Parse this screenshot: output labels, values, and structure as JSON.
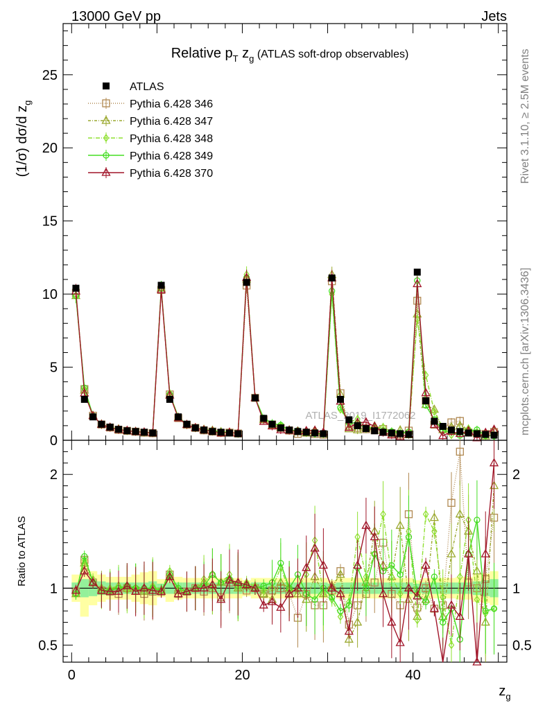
{
  "header": {
    "left_label": "13000 GeV pp",
    "right_label": "Jets",
    "side_label_top": "Rivet 3.1.10, ≥ 2.5M events",
    "side_label_bottom": "mcplots.cern.ch [arXiv:1306.3436]",
    "watermark": "ATLAS_2019_I1772062"
  },
  "chart_data": {
    "type": "line",
    "title_main": "Relative p",
    "title_sub_T": "T",
    "title_mid": " z",
    "title_sub_g": "g",
    "title_tail": " (ATLAS soft-drop observables)",
    "ylabel_top": "(1/σ) dσ/d z",
    "ylabel_top_sub": "g",
    "ylabel_bottom": "Ratio to ATLAS",
    "xlabel": "z",
    "xlabel_sub": "g",
    "xlim": [
      -1,
      51
    ],
    "ylim_top": [
      0,
      28.5
    ],
    "ylim_ratio": [
      0.35,
      2.3
    ],
    "x_ticks": [
      0,
      20,
      40
    ],
    "y_ticks_top": [
      0,
      5,
      10,
      15,
      20,
      25
    ],
    "y_ticks_ratio": [
      0.5,
      1,
      2
    ],
    "legend_position": "top-left",
    "x": [
      0.5,
      1.5,
      2.5,
      3.5,
      4.5,
      5.5,
      6.5,
      7.5,
      8.5,
      9.5,
      10.5,
      11.5,
      12.5,
      13.5,
      14.5,
      15.5,
      16.5,
      17.5,
      18.5,
      19.5,
      20.5,
      21.5,
      22.5,
      23.5,
      24.5,
      25.5,
      26.5,
      27.5,
      28.5,
      29.5,
      30.5,
      31.5,
      32.5,
      33.5,
      34.5,
      35.5,
      36.5,
      37.5,
      38.5,
      39.5,
      40.5,
      41.5,
      42.5,
      43.5,
      44.5,
      45.5,
      46.5,
      47.5,
      48.5,
      49.5
    ],
    "atlas": {
      "name": "ATLAS",
      "color": "#000000",
      "values": [
        10.4,
        2.8,
        1.6,
        1.1,
        0.9,
        0.75,
        0.65,
        0.6,
        0.55,
        0.5,
        10.6,
        2.8,
        1.6,
        1.1,
        0.85,
        0.7,
        0.6,
        0.55,
        0.5,
        0.45,
        10.8,
        2.9,
        1.5,
        1.1,
        0.85,
        0.7,
        0.6,
        0.55,
        0.5,
        0.45,
        11.1,
        2.8,
        1.4,
        1.0,
        0.8,
        0.65,
        0.55,
        0.5,
        0.45,
        0.4,
        11.5,
        2.7,
        1.3,
        0.95,
        0.7,
        0.6,
        0.5,
        0.45,
        0.4,
        0.35
      ],
      "ratio_band_inner": [
        0.05,
        0.08,
        0.07,
        0.06,
        0.05,
        0.05,
        0.05,
        0.05,
        0.05,
        0.06,
        0.04,
        0.05,
        0.05,
        0.05,
        0.05,
        0.05,
        0.05,
        0.05,
        0.05,
        0.05,
        0.04,
        0.05,
        0.05,
        0.05,
        0.05,
        0.05,
        0.05,
        0.05,
        0.05,
        0.05,
        0.04,
        0.05,
        0.05,
        0.05,
        0.05,
        0.05,
        0.05,
        0.05,
        0.05,
        0.05,
        0.04,
        0.05,
        0.05,
        0.05,
        0.05,
        0.05,
        0.05,
        0.06,
        0.07,
        0.08
      ],
      "ratio_band_outer": [
        0.12,
        0.25,
        0.15,
        0.12,
        0.1,
        0.1,
        0.1,
        0.12,
        0.14,
        0.15,
        0.08,
        0.12,
        0.1,
        0.09,
        0.09,
        0.09,
        0.09,
        0.09,
        0.09,
        0.09,
        0.07,
        0.09,
        0.09,
        0.09,
        0.09,
        0.09,
        0.09,
        0.09,
        0.09,
        0.09,
        0.07,
        0.09,
        0.09,
        0.09,
        0.09,
        0.09,
        0.09,
        0.09,
        0.09,
        0.09,
        0.07,
        0.09,
        0.09,
        0.09,
        0.09,
        0.1,
        0.1,
        0.12,
        0.13,
        0.15
      ]
    },
    "series": [
      {
        "name": "Pythia 6.428 346",
        "color": "#b08850",
        "marker": "square",
        "dash": "1,2",
        "ratio": [
          0.97,
          1.25,
          1.05,
          0.98,
          0.97,
          0.95,
          1.0,
          0.98,
          0.95,
          0.97,
          0.97,
          1.12,
          0.95,
          0.97,
          1.0,
          0.97,
          1.0,
          0.92,
          1.05,
          1.03,
          0.98,
          1.0,
          0.95,
          0.98,
          1.0,
          0.95,
          0.74,
          0.95,
          0.85,
          0.85,
          0.98,
          1.15,
          0.68,
          0.85,
          0.95,
          1.05,
          1.4,
          0.95,
          0.85,
          1.65,
          0.83,
          1.0,
          0.82,
          0.85,
          1.75,
          2.2,
          1.05,
          1.0,
          1.08,
          1.62
        ]
      },
      {
        "name": "Pythia 6.428 347",
        "color": "#9aa82e",
        "marker": "triangle",
        "dash": "4,2,1,2",
        "ratio": [
          0.95,
          1.22,
          1.05,
          1.0,
          0.98,
          1.02,
          1.0,
          1.0,
          0.97,
          1.0,
          0.98,
          1.1,
          0.98,
          0.97,
          1.0,
          1.05,
          1.12,
          1.05,
          1.08,
          1.0,
          1.02,
          1.0,
          0.95,
          0.9,
          1.05,
          1.0,
          0.95,
          0.9,
          1.1,
          0.95,
          1.02,
          1.12,
          0.55,
          0.7,
          1.05,
          1.5,
          1.2,
          1.1,
          1.55,
          0.9,
          0.75,
          0.9,
          1.62,
          0.75,
          1.3,
          1.65,
          1.5,
          1.15,
          0.7,
          1.9
        ]
      },
      {
        "name": "Pythia 6.428 348",
        "color": "#8fe030",
        "marker": "diamond",
        "dash": "6,2,1,2",
        "ratio": [
          0.95,
          1.25,
          1.08,
          0.97,
          1.0,
          1.02,
          0.98,
          1.0,
          0.97,
          1.02,
          0.98,
          1.15,
          0.98,
          0.97,
          1.0,
          1.08,
          1.0,
          1.05,
          1.12,
          1.0,
          1.05,
          1.02,
          0.98,
          1.0,
          1.18,
          0.98,
          1.0,
          1.12,
          1.42,
          0.95,
          0.9,
          0.75,
          0.88,
          1.45,
          1.1,
          1.3,
          1.65,
          1.1,
          0.95,
          1.5,
          0.72,
          1.65,
          1.5,
          0.92,
          0.5,
          1.1,
          1.6,
          0.9,
          0.78,
          0.82
        ]
      },
      {
        "name": "Pythia 6.428 349",
        "color": "#44dd22",
        "marker": "circle",
        "dash": "",
        "ratio": [
          0.95,
          1.28,
          1.05,
          0.98,
          0.98,
          1.0,
          1.02,
          1.0,
          1.0,
          1.0,
          0.98,
          1.12,
          1.0,
          0.97,
          1.0,
          1.02,
          1.12,
          1.05,
          1.08,
          1.02,
          1.03,
          1.0,
          1.02,
          1.05,
          1.22,
          1.0,
          1.12,
          0.95,
          0.9,
          1.0,
          0.92,
          0.8,
          0.85,
          1.18,
          1.0,
          1.3,
          1.15,
          1.2,
          1.12,
          1.45,
          0.95,
          0.88,
          1.1,
          0.7,
          0.82,
          0.55,
          1.3,
          1.6,
          0.8,
          0.82
        ]
      },
      {
        "name": "Pythia 6.428 370",
        "color": "#a01428",
        "marker": "triangle-open",
        "dash": "",
        "ratio": [
          0.98,
          1.15,
          1.05,
          0.98,
          0.97,
          0.97,
          1.02,
          0.97,
          1.0,
          0.98,
          0.97,
          1.1,
          0.95,
          0.97,
          1.0,
          1.0,
          1.03,
          0.9,
          1.07,
          1.05,
          1.03,
          1.0,
          0.85,
          0.88,
          0.83,
          0.95,
          1.0,
          1.18,
          1.35,
          1.2,
          1.0,
          0.95,
          0.62,
          1.2,
          1.55,
          1.45,
          0.95,
          0.7,
          0.52,
          1.0,
          0.93,
          1.2,
          0.82,
          0.32,
          0.85,
          0.75,
          1.3,
          0.35,
          1.3,
          2.1
        ]
      }
    ]
  }
}
